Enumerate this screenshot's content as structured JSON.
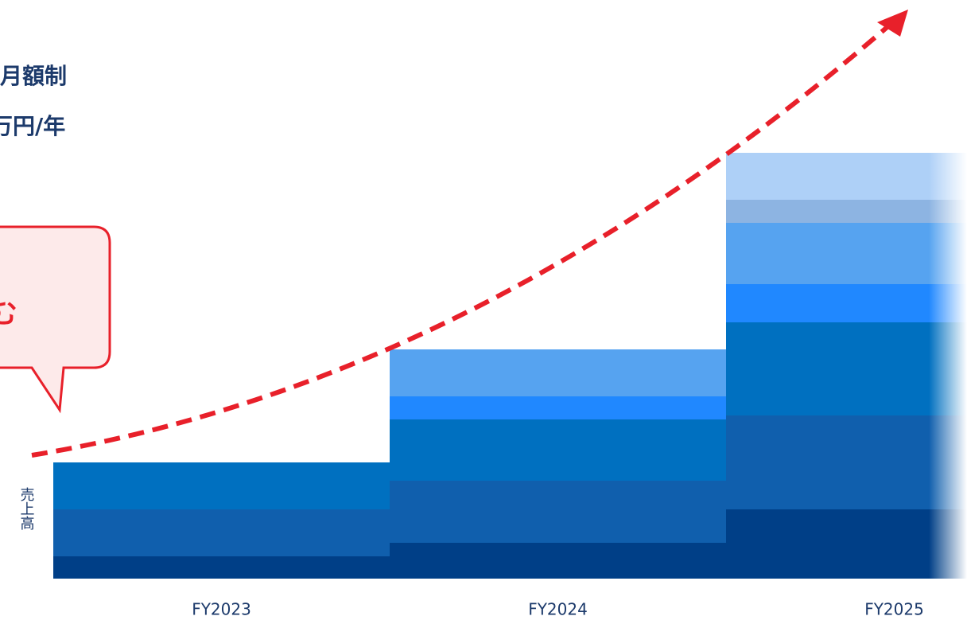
{
  "chart_data": {
    "type": "stacked-bar",
    "title": "月額制",
    "subtitle": "万円/年",
    "annotation": "む",
    "ylabel": "売上高",
    "categories": [
      "FY2023",
      "FY2024",
      "FY2025"
    ],
    "ylim": [
      0,
      540
    ],
    "series": [
      {
        "color": "#003f87",
        "values": [
          28,
          45,
          87
        ]
      },
      {
        "color": "#105fad",
        "values": [
          59,
          78,
          118
        ]
      },
      {
        "color": "#0070c0",
        "values": [
          59,
          77,
          117
        ]
      },
      {
        "color": "#2088ff",
        "values": [
          0,
          29,
          48
        ]
      },
      {
        "color": "#56a3f0",
        "values": [
          0,
          59,
          77
        ]
      },
      {
        "color": "#8db4e2",
        "values": [
          0,
          0,
          29
        ]
      },
      {
        "color": "#aed0f7",
        "values": [
          0,
          0,
          59
        ]
      }
    ]
  }
}
